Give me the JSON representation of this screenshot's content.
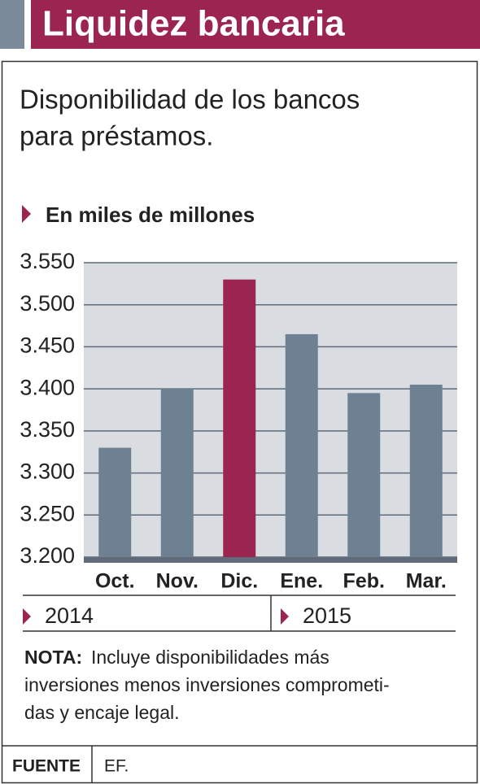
{
  "chart_data": {
    "type": "bar",
    "title": "Liquidez bancaria",
    "subtitle": [
      "Disponibilidad de los bancos",
      "para préstamos."
    ],
    "y_label": "En miles de millones",
    "categories": [
      "Oct.",
      "Nov.",
      "Dic.",
      "Ene.",
      "Feb.",
      "Mar."
    ],
    "values": [
      3330,
      3400,
      3530,
      3465,
      3395,
      3405
    ],
    "colors": [
      "#6d8193",
      "#6d8193",
      "#9c2450",
      "#6d8193",
      "#6d8193",
      "#6d8193"
    ],
    "ylim": [
      3200,
      3550
    ],
    "yticks": [
      {
        "value": 3200,
        "label": "3.200"
      },
      {
        "value": 3250,
        "label": "3.250"
      },
      {
        "value": 3300,
        "label": "3.300"
      },
      {
        "value": 3350,
        "label": "3.350"
      },
      {
        "value": 3400,
        "label": "3.400"
      },
      {
        "value": 3450,
        "label": "3.450"
      },
      {
        "value": 3500,
        "label": "3.500"
      },
      {
        "value": 3550,
        "label": "3.550"
      }
    ],
    "grid": true,
    "year_groups": [
      "2014",
      "2015"
    ],
    "note": {
      "label": "NOTA:",
      "lines": [
        "Incluye disponibilidades más",
        "inversiones menos inversiones comprometi-",
        "das y encaje legal."
      ]
    },
    "source": {
      "label": "FUENTE",
      "text": "EF."
    }
  }
}
